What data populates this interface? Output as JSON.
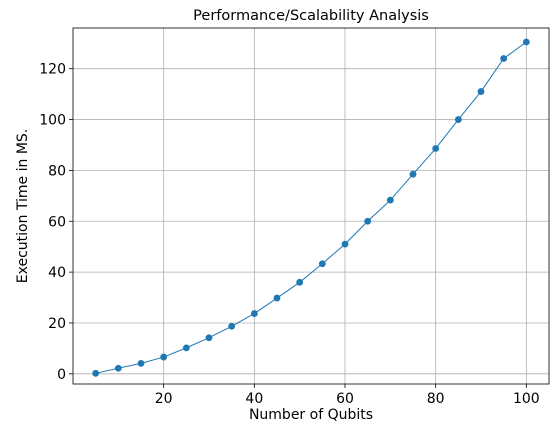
{
  "chart_data": {
    "type": "line",
    "title": "Performance/Scalability Analysis",
    "xlabel": "Number of Qubits",
    "ylabel": "Execution Time in MS.",
    "xlim": [
      0,
      105
    ],
    "ylim": [
      -4,
      136
    ],
    "xticks": [
      20,
      40,
      60,
      80,
      100
    ],
    "yticks": [
      0,
      20,
      40,
      60,
      80,
      100,
      120
    ],
    "grid": true,
    "series": [
      {
        "color": "#1f77b4",
        "marker": "circle",
        "x": [
          5,
          10,
          15,
          20,
          25,
          30,
          35,
          40,
          45,
          50,
          55,
          60,
          65,
          70,
          75,
          80,
          85,
          90,
          95,
          100
        ],
        "y": [
          0.2,
          2.2,
          4.1,
          6.6,
          10.2,
          14.2,
          18.7,
          23.7,
          29.8,
          36.0,
          43.3,
          51.0,
          60.0,
          68.3,
          78.5,
          88.6,
          100.0,
          111.0,
          124.0,
          130.5
        ]
      }
    ]
  }
}
